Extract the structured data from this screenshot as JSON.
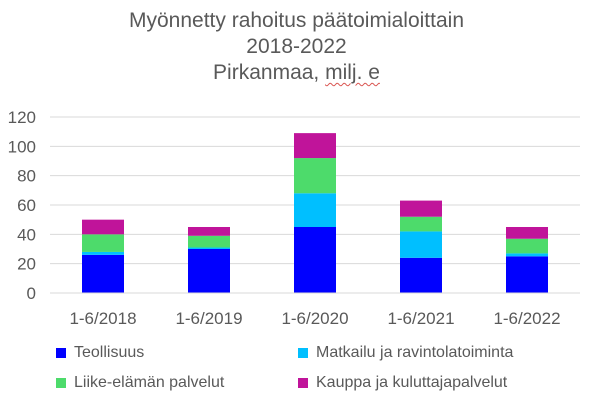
{
  "chart_data": {
    "type": "bar",
    "stacked": true,
    "title_lines": [
      "Myönnetty rahoitus päätoimialoittain",
      "2018-2022",
      "Pirkanmaa, "
    ],
    "title_underlined": "milj. e",
    "categories": [
      "1-6/2018",
      "1-6/2019",
      "1-6/2020",
      "1-6/2021",
      "1-6/2022"
    ],
    "series": [
      {
        "name": "Teollisuus",
        "color": "#0000ff",
        "values": [
          26,
          30,
          45,
          24,
          25
        ]
      },
      {
        "name": "Matkailu ja ravintolatoimintа",
        "color": "#00bfff",
        "values": [
          2,
          1,
          23,
          18,
          2
        ]
      },
      {
        "name": "Liike-elämän palvelut",
        "color": "#4ddb6b",
        "values": [
          12,
          8,
          24,
          10,
          10
        ]
      },
      {
        "name": "Kauppa ja kuluttajapalvelut",
        "color": "#c0149a",
        "values": [
          10,
          6,
          17,
          11,
          8
        ]
      }
    ],
    "yticks": [
      0,
      20,
      40,
      60,
      80,
      100,
      120
    ],
    "ylim": [
      0,
      120
    ],
    "grid": true,
    "legend": "bottom"
  }
}
